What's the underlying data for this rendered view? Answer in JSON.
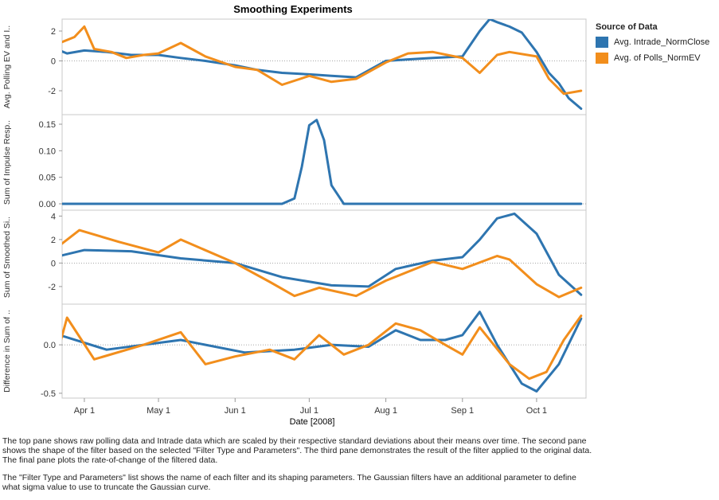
{
  "title": "Smoothing Experiments",
  "legend": {
    "title": "Source of Data",
    "items": [
      {
        "label": "Avg. Intrade_NormClose",
        "color": "#2e75b0"
      },
      {
        "label": "Avg. of Polls_NormEV",
        "color": "#f28e1c"
      }
    ]
  },
  "caption": {
    "p1": "The top pane shows raw polling data and Intrade data which are scaled by their respective standard deviations about their means over time.  The second pane shows the shape of the filter based on the selected \"Filter Type and Parameters\". The third pane demonstrates the result of the filter applied to the original data.  The final pane plots the rate-of-change of the filtered data.",
    "p2": "The \"Filter Type and Parameters\" list shows the name of each filter and its shaping parameters. The Gaussian filters have an additional parameter to define what sigma value to use to truncate the Gaussian curve."
  },
  "chart_data": {
    "type": "line",
    "title": "Smoothing Experiments",
    "xlabel": "Date [2008]",
    "x_ticks": [
      "Apr 1",
      "May 1",
      "Jun 1",
      "Jul 1",
      "Aug 1",
      "Sep 1",
      "Oct 1"
    ],
    "x_range": [
      "2008-03-23",
      "2008-10-21"
    ],
    "panes": [
      {
        "ylabel": "Avg. Polling EV and I..",
        "ylim": [
          -3.6,
          2.8
        ],
        "yticks": [
          "2",
          "0",
          "-2"
        ],
        "series": [
          {
            "name": "Avg. Intrade_NormClose",
            "color": "#2e75b0",
            "x": [
              "2008-03-22",
              "2008-03-25",
              "2008-04-01",
              "2008-04-10",
              "2008-04-20",
              "2008-05-01",
              "2008-05-10",
              "2008-05-20",
              "2008-06-01",
              "2008-06-10",
              "2008-06-20",
              "2008-07-01",
              "2008-07-10",
              "2008-07-20",
              "2008-08-01",
              "2008-08-10",
              "2008-08-20",
              "2008-09-01",
              "2008-09-08",
              "2008-09-12",
              "2008-09-15",
              "2008-09-20",
              "2008-09-25",
              "2008-10-01",
              "2008-10-06",
              "2008-10-10",
              "2008-10-14",
              "2008-10-19"
            ],
            "y": [
              0.7,
              0.5,
              0.7,
              0.6,
              0.4,
              0.4,
              0.2,
              0.0,
              -0.3,
              -0.6,
              -0.8,
              -0.9,
              -1.0,
              -1.1,
              0.0,
              0.1,
              0.2,
              0.3,
              2.0,
              2.8,
              2.6,
              2.3,
              1.9,
              0.6,
              -0.8,
              -1.5,
              -2.5,
              -3.2
            ]
          },
          {
            "name": "Avg. of Polls_NormEV",
            "color": "#f28e1c",
            "x": [
              "2008-03-22",
              "2008-03-28",
              "2008-04-01",
              "2008-04-05",
              "2008-04-12",
              "2008-04-18",
              "2008-04-25",
              "2008-05-01",
              "2008-05-10",
              "2008-05-20",
              "2008-06-01",
              "2008-06-10",
              "2008-06-20",
              "2008-07-01",
              "2008-07-10",
              "2008-07-20",
              "2008-08-01",
              "2008-08-10",
              "2008-08-20",
              "2008-09-01",
              "2008-09-08",
              "2008-09-15",
              "2008-09-20",
              "2008-10-01",
              "2008-10-06",
              "2008-10-12",
              "2008-10-19"
            ],
            "y": [
              1.2,
              1.6,
              2.3,
              0.8,
              0.6,
              0.2,
              0.4,
              0.5,
              1.2,
              0.3,
              -0.4,
              -0.6,
              -1.6,
              -1.0,
              -1.4,
              -1.2,
              -0.1,
              0.5,
              0.6,
              0.2,
              -0.8,
              0.4,
              0.6,
              0.3,
              -1.2,
              -2.2,
              -2.0
            ]
          }
        ]
      },
      {
        "ylabel": "Sum of Impulse Resp..",
        "ylim": [
          -0.012,
          0.168
        ],
        "yticks": [
          "0.15",
          "0.10",
          "0.05",
          "0.00"
        ],
        "series": [
          {
            "name": "Avg. Intrade_NormClose",
            "color": "#2e75b0",
            "x": [
              "2008-03-22",
              "2008-06-20",
              "2008-06-25",
              "2008-06-28",
              "2008-07-01",
              "2008-07-04",
              "2008-07-07",
              "2008-07-10",
              "2008-07-15",
              "2008-10-19"
            ],
            "y": [
              0.0,
              0.0,
              0.01,
              0.07,
              0.148,
              0.158,
              0.12,
              0.035,
              0.0,
              0.0
            ]
          }
        ]
      },
      {
        "ylabel": "Sum of Smoothed Si..",
        "ylim": [
          -3.5,
          4.5
        ],
        "yticks": [
          "4",
          "2",
          "0",
          "-2"
        ],
        "series": [
          {
            "name": "Avg. Intrade_NormClose",
            "color": "#2e75b0",
            "x": [
              "2008-03-22",
              "2008-04-01",
              "2008-04-20",
              "2008-05-10",
              "2008-06-01",
              "2008-06-20",
              "2008-07-10",
              "2008-07-25",
              "2008-08-05",
              "2008-08-20",
              "2008-09-01",
              "2008-09-08",
              "2008-09-15",
              "2008-09-22",
              "2008-10-01",
              "2008-10-10",
              "2008-10-19"
            ],
            "y": [
              0.6,
              1.1,
              1.0,
              0.4,
              0.0,
              -1.2,
              -1.9,
              -2.0,
              -0.5,
              0.2,
              0.5,
              2.0,
              3.8,
              4.2,
              2.5,
              -1.0,
              -2.7
            ]
          },
          {
            "name": "Avg. of Polls_NormEV",
            "color": "#f28e1c",
            "x": [
              "2008-03-22",
              "2008-03-30",
              "2008-04-15",
              "2008-05-01",
              "2008-05-10",
              "2008-06-01",
              "2008-06-15",
              "2008-06-25",
              "2008-07-05",
              "2008-07-20",
              "2008-08-01",
              "2008-08-20",
              "2008-09-01",
              "2008-09-15",
              "2008-09-20",
              "2008-10-01",
              "2008-10-10",
              "2008-10-19"
            ],
            "y": [
              1.5,
              2.8,
              1.8,
              0.9,
              2.0,
              0.0,
              -1.6,
              -2.8,
              -2.1,
              -2.8,
              -1.5,
              0.1,
              -0.5,
              0.6,
              0.3,
              -1.8,
              -2.9,
              -2.1
            ]
          }
        ]
      },
      {
        "ylabel": "Difference in Sum of ..",
        "ylim": [
          -0.55,
          0.42
        ],
        "yticks": [
          "0.0",
          "-0.5"
        ],
        "series": [
          {
            "name": "Avg. Intrade_NormClose",
            "color": "#2e75b0",
            "x": [
              "2008-03-22",
              "2008-04-10",
              "2008-05-10",
              "2008-06-05",
              "2008-06-25",
              "2008-07-10",
              "2008-07-25",
              "2008-08-05",
              "2008-08-15",
              "2008-08-25",
              "2008-09-01",
              "2008-09-08",
              "2008-09-15",
              "2008-09-25",
              "2008-10-01",
              "2008-10-10",
              "2008-10-19"
            ],
            "y": [
              0.1,
              -0.05,
              0.05,
              -0.08,
              -0.05,
              0.0,
              -0.02,
              0.15,
              0.05,
              0.05,
              0.1,
              0.34,
              0.0,
              -0.4,
              -0.48,
              -0.2,
              0.27
            ]
          },
          {
            "name": "Avg. of Polls_NormEV",
            "color": "#f28e1c",
            "x": [
              "2008-03-22",
              "2008-03-25",
              "2008-04-05",
              "2008-04-25",
              "2008-05-10",
              "2008-05-20",
              "2008-06-01",
              "2008-06-15",
              "2008-06-25",
              "2008-07-05",
              "2008-07-15",
              "2008-07-25",
              "2008-08-05",
              "2008-08-15",
              "2008-08-25",
              "2008-09-01",
              "2008-09-08",
              "2008-09-20",
              "2008-09-28",
              "2008-10-05",
              "2008-10-12",
              "2008-10-19"
            ],
            "y": [
              0.0,
              0.28,
              -0.15,
              0.0,
              0.13,
              -0.2,
              -0.12,
              -0.05,
              -0.15,
              0.1,
              -0.1,
              0.0,
              0.22,
              0.15,
              0.0,
              -0.1,
              0.18,
              -0.2,
              -0.35,
              -0.28,
              0.05,
              0.3
            ]
          }
        ]
      }
    ]
  }
}
